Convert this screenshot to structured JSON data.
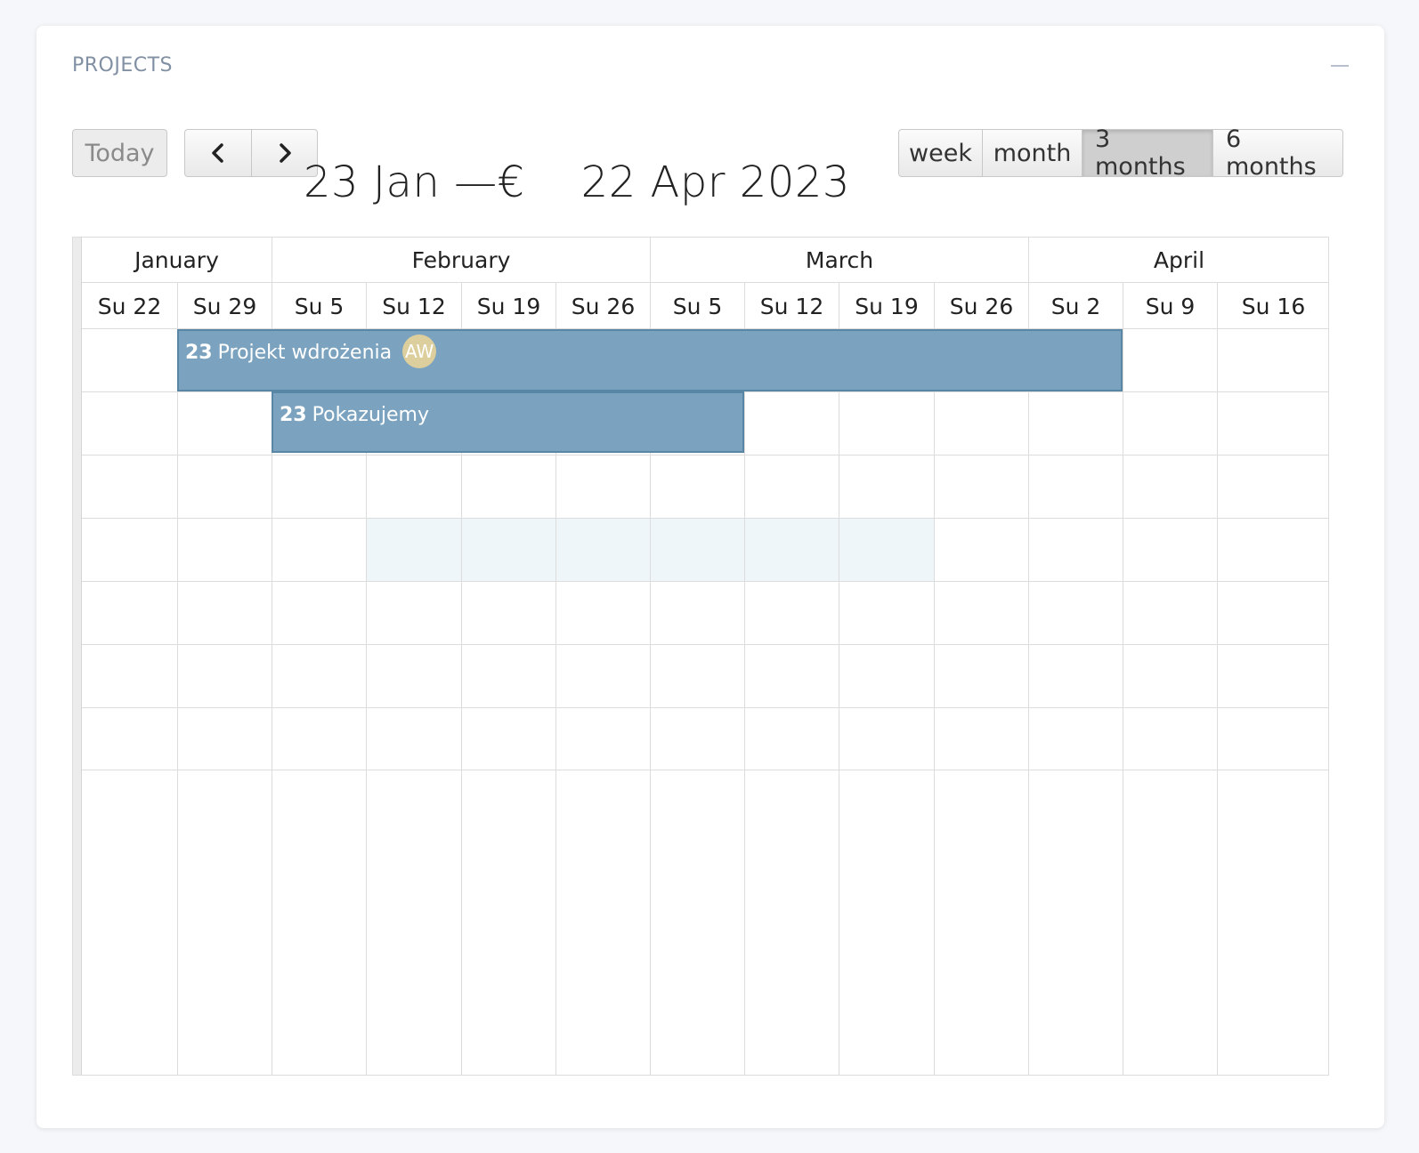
{
  "widget": {
    "title": "PROJECTS"
  },
  "toolbar": {
    "today_label": "Today",
    "range_title": "23 Jan —€    22 Apr 2023",
    "views": [
      {
        "label": "week",
        "active": false
      },
      {
        "label": "month",
        "active": false
      },
      {
        "label": "3 months",
        "active": true
      },
      {
        "label": "6 months",
        "active": false
      }
    ]
  },
  "timeline": {
    "months": [
      "January",
      "February",
      "March",
      "April"
    ],
    "weeks": [
      "Su 22",
      "Su 29",
      "Su 5",
      "Su 12",
      "Su 19",
      "Su 26",
      "Su 5",
      "Su 12",
      "Su 19",
      "Su 26",
      "Su 2",
      "Su 9",
      "Su 16"
    ],
    "events": [
      {
        "number": "23",
        "title": "Projekt wdrożenia",
        "avatar": "AW"
      },
      {
        "number": "23",
        "title": "Pokazujemy"
      }
    ]
  },
  "colors": {
    "event_fill": "#7ba3bf",
    "event_border": "#5a86a6",
    "avatar": "#dccf9d",
    "highlight": "#eef6f9"
  }
}
